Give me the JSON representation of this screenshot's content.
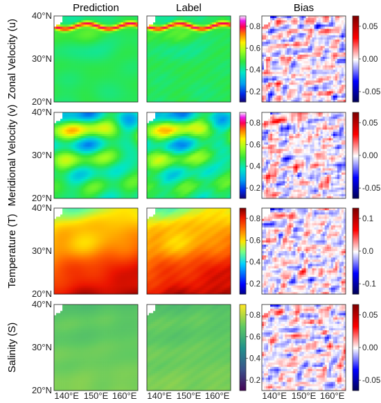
{
  "figure": {
    "column_titles": [
      "Prediction",
      "Label",
      "Bias"
    ],
    "x_ticks": [
      "140°E",
      "150°E",
      "160°E"
    ],
    "y_ticks": [
      "40°N",
      "30°N",
      "20°N"
    ]
  },
  "chart_data": [
    {
      "type": "heatmap",
      "row": "Zonal Velocity (u)",
      "ylabel": "Zonal Velocity (u)",
      "field_colormap": "gist_ncar",
      "field_colorbar_ticks": [
        "0.8",
        "0.6",
        "0.4",
        "0.2"
      ],
      "field_range": [
        0.1,
        0.9
      ],
      "bias_colormap": "seismic",
      "bias_colorbar_ticks": [
        "0.05",
        "0.00",
        "-0.05"
      ],
      "bias_range": [
        -0.08,
        0.08
      ]
    },
    {
      "type": "heatmap",
      "row": "Meridional Velocity (v)",
      "ylabel": "Meridional Velocity (v)",
      "field_colormap": "gist_ncar",
      "field_colorbar_ticks": [
        "0.8",
        "0.6",
        "0.4",
        "0.2"
      ],
      "field_range": [
        0.15,
        0.85
      ],
      "bias_colormap": "seismic",
      "bias_colorbar_ticks": [
        "0.05",
        "0.00",
        "-0.05"
      ],
      "bias_range": [
        -0.08,
        0.08
      ]
    },
    {
      "type": "heatmap",
      "row": "Temperature (T)",
      "ylabel": "Temperature (T)",
      "field_colormap": "jet",
      "field_colorbar_ticks": [
        "0.8",
        "0.6",
        "0.4",
        "0.2"
      ],
      "field_range": [
        0.1,
        0.95
      ],
      "bias_colormap": "seismic",
      "bias_colorbar_ticks": [
        "0.1",
        "0.0",
        "-0.1"
      ],
      "bias_range": [
        -0.13,
        0.13
      ]
    },
    {
      "type": "heatmap",
      "row": "Salinity (S)",
      "ylabel": "Salinity (S)",
      "field_colormap": "viridis",
      "field_colorbar_ticks": [
        "0.8",
        "0.6",
        "0.4",
        "0.2"
      ],
      "field_range": [
        0.05,
        0.95
      ],
      "bias_colormap": "seismic",
      "bias_colorbar_ticks": [
        "0.05",
        "0.00",
        "-0.05"
      ],
      "bias_range": [
        -0.08,
        0.08
      ]
    }
  ]
}
